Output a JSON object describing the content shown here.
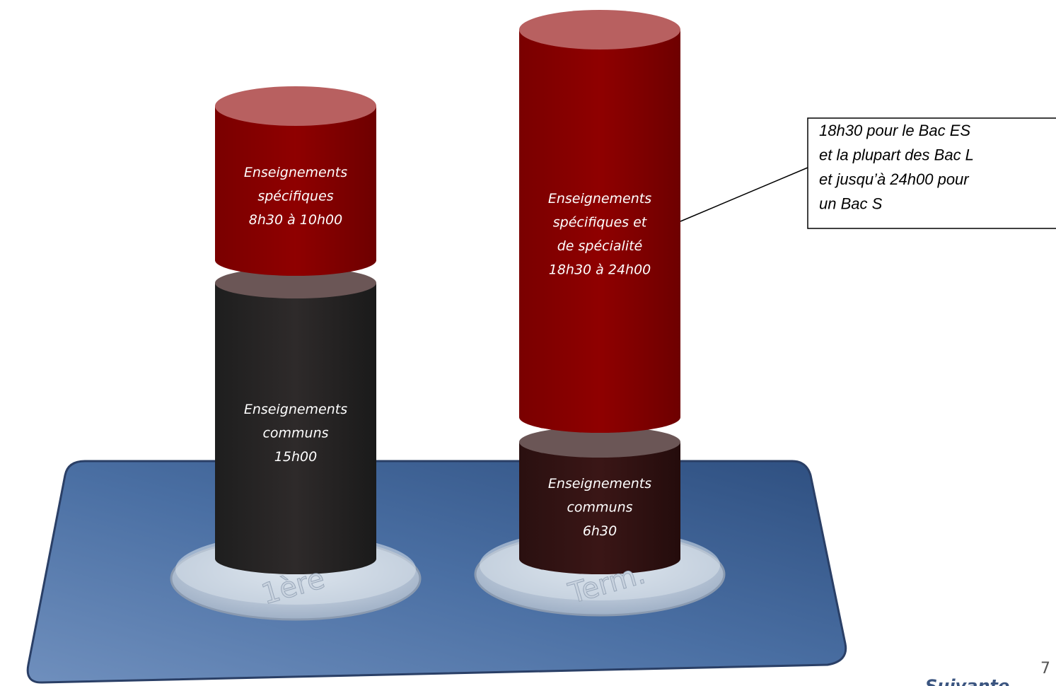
{
  "columns": [
    {
      "label": "1ère",
      "segments": [
        {
          "lines": [
            "Enseignements",
            "spécifiques",
            "8h30 à 10h00"
          ]
        },
        {
          "lines": [
            "Enseignements",
            "communs",
            "15h00"
          ]
        }
      ]
    },
    {
      "label": "Term.",
      "segments": [
        {
          "lines": [
            "Enseignements",
            "spécifiques et",
            "de spécialité",
            "18h30 à 24h00"
          ]
        },
        {
          "lines": [
            "Enseignements",
            "communs",
            "6h30"
          ]
        }
      ]
    }
  ],
  "callout": {
    "lines": [
      "18h30 pour le Bac ES",
      "et la plupart des Bac L",
      "et jusqu’à 24h00 pour",
      "un Bac S"
    ]
  },
  "page_number": "7",
  "nav": "Suivante"
}
